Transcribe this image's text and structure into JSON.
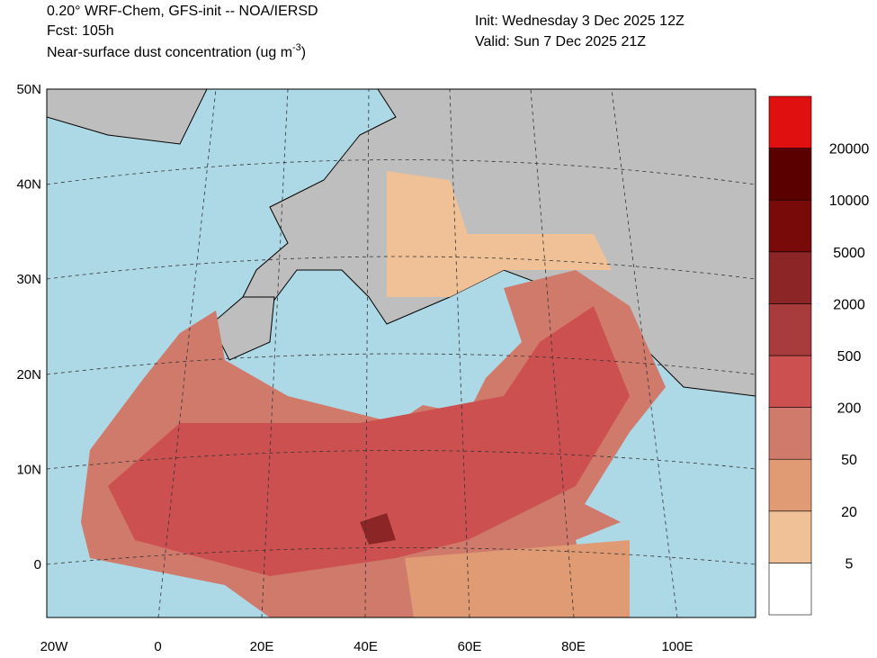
{
  "header": {
    "model": "0.20° WRF-Chem, GFS-init -- NOA/IERSD",
    "forecast": "Fcst: 105h",
    "field": "Near-surface dust concentration (ug m",
    "field_exp": "-3",
    "field_end": ")",
    "init": "Init: Wednesday 3 Dec 2025  12Z",
    "valid": "Valid: Sun 7 Dec 2025  21Z"
  },
  "map": {
    "lat_labels": [
      "50N",
      "40N",
      "30N",
      "20N",
      "10N",
      "0"
    ],
    "lon_labels": [
      "20W",
      "0",
      "20E",
      "40E",
      "60E",
      "80E",
      "100E"
    ]
  },
  "colorbar": {
    "levels": [
      5,
      20,
      50,
      200,
      500,
      2000,
      5000,
      10000,
      20000
    ],
    "colors": [
      "#ffffff",
      "#f0c096",
      "#e09a74",
      "#d07a6c",
      "#cc5050",
      "#a83c3c",
      "#8c2626",
      "#780a0a",
      "#5a0000",
      "#e01010"
    ]
  }
}
